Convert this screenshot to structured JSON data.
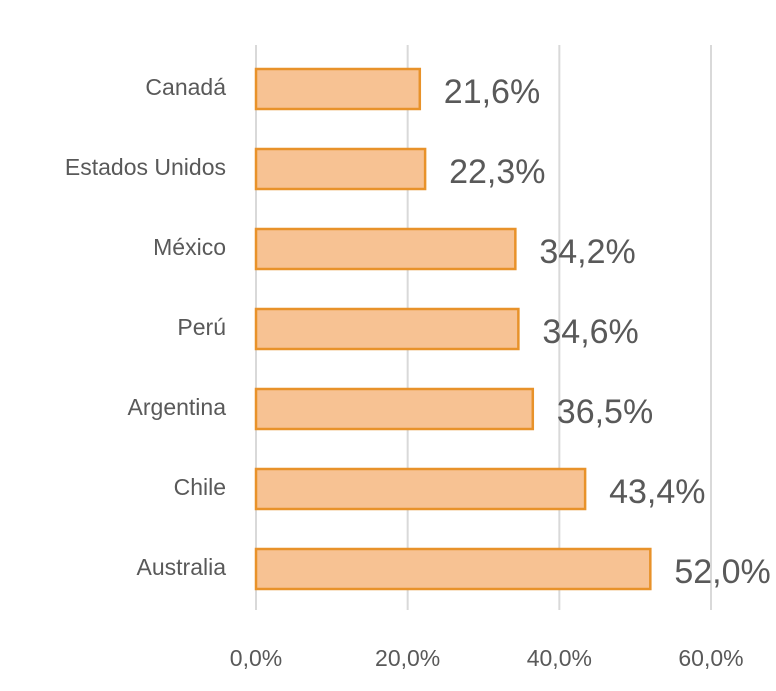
{
  "chart_data": {
    "type": "bar",
    "orientation": "horizontal",
    "categories": [
      "Canadá",
      "Estados Unidos",
      "México",
      "Perú",
      "Argentina",
      "Chile",
      "Australia"
    ],
    "values": [
      21.6,
      22.3,
      34.2,
      34.6,
      36.5,
      43.4,
      52.0
    ],
    "value_labels": [
      "21,6%",
      "22,3%",
      "34,2%",
      "34,6%",
      "36,5%",
      "43,4%",
      "52,0%"
    ],
    "color": "#f7c293",
    "edge_color": "#e8922a",
    "xlim": [
      0,
      60
    ],
    "xticks": [
      {
        "value": 0,
        "label": "0,0%"
      },
      {
        "value": 20,
        "label": "20,0%"
      },
      {
        "value": 40,
        "label": "40,0%"
      },
      {
        "value": 60,
        "label": "60,0%"
      }
    ],
    "grid": true
  }
}
